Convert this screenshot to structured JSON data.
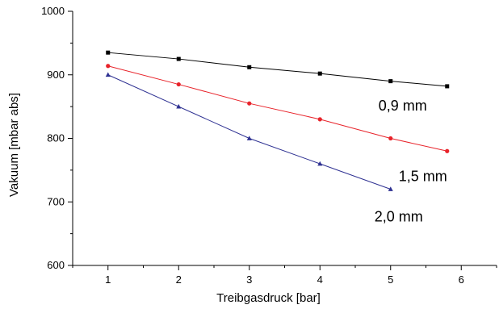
{
  "chart_data": {
    "type": "line",
    "xlabel": "Treibgasdruck [bar]",
    "ylabel": "Vakuum [mbar abs]",
    "xlim": [
      0.5,
      6.5
    ],
    "ylim": [
      600,
      1000
    ],
    "x_ticks": [
      1,
      2,
      3,
      4,
      5,
      6
    ],
    "y_ticks": [
      600,
      700,
      800,
      900,
      1000
    ],
    "grid": false,
    "series": [
      {
        "name": "0,9 mm",
        "color": "#000000",
        "marker": "square",
        "x": [
          1,
          2,
          3,
          4,
          5,
          5.8
        ],
        "y": [
          935,
          925,
          912,
          902,
          890,
          882
        ]
      },
      {
        "name": "1,5 mm",
        "color": "#e8232a",
        "marker": "circle",
        "x": [
          1,
          2,
          3,
          4,
          5,
          5.8
        ],
        "y": [
          914,
          885,
          855,
          830,
          800,
          780
        ]
      },
      {
        "name": "2,0 mm",
        "color": "#2e3192",
        "marker": "triangle",
        "x": [
          1,
          2,
          3,
          4,
          5
        ],
        "y": [
          900,
          850,
          800,
          760,
          720
        ]
      }
    ]
  }
}
